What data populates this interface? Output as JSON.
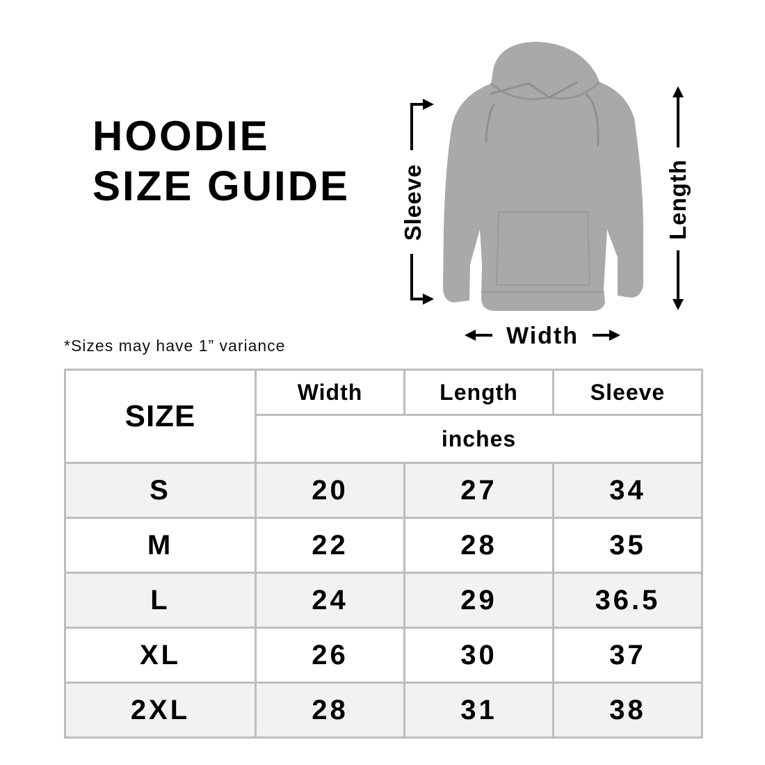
{
  "title": {
    "line1": "HOODIE",
    "line2": "SIZE GUIDE"
  },
  "diagram": {
    "sleeve_label": "Sleeve",
    "length_label": "Length",
    "width_label": "Width",
    "garment_color": "#a9a9ab"
  },
  "note": "*Sizes may have 1” variance",
  "table": {
    "size_header": "SIZE",
    "columns": [
      "Width",
      "Length",
      "Sleeve"
    ],
    "unit": "inches",
    "rows": [
      {
        "size": "S",
        "width": "20",
        "length": "27",
        "sleeve": "34"
      },
      {
        "size": "M",
        "width": "22",
        "length": "28",
        "sleeve": "35"
      },
      {
        "size": "L",
        "width": "24",
        "length": "29",
        "sleeve": "36.5"
      },
      {
        "size": "XL",
        "width": "26",
        "length": "30",
        "sleeve": "37"
      },
      {
        "size": "2XL",
        "width": "28",
        "length": "31",
        "sleeve": "38"
      }
    ]
  }
}
